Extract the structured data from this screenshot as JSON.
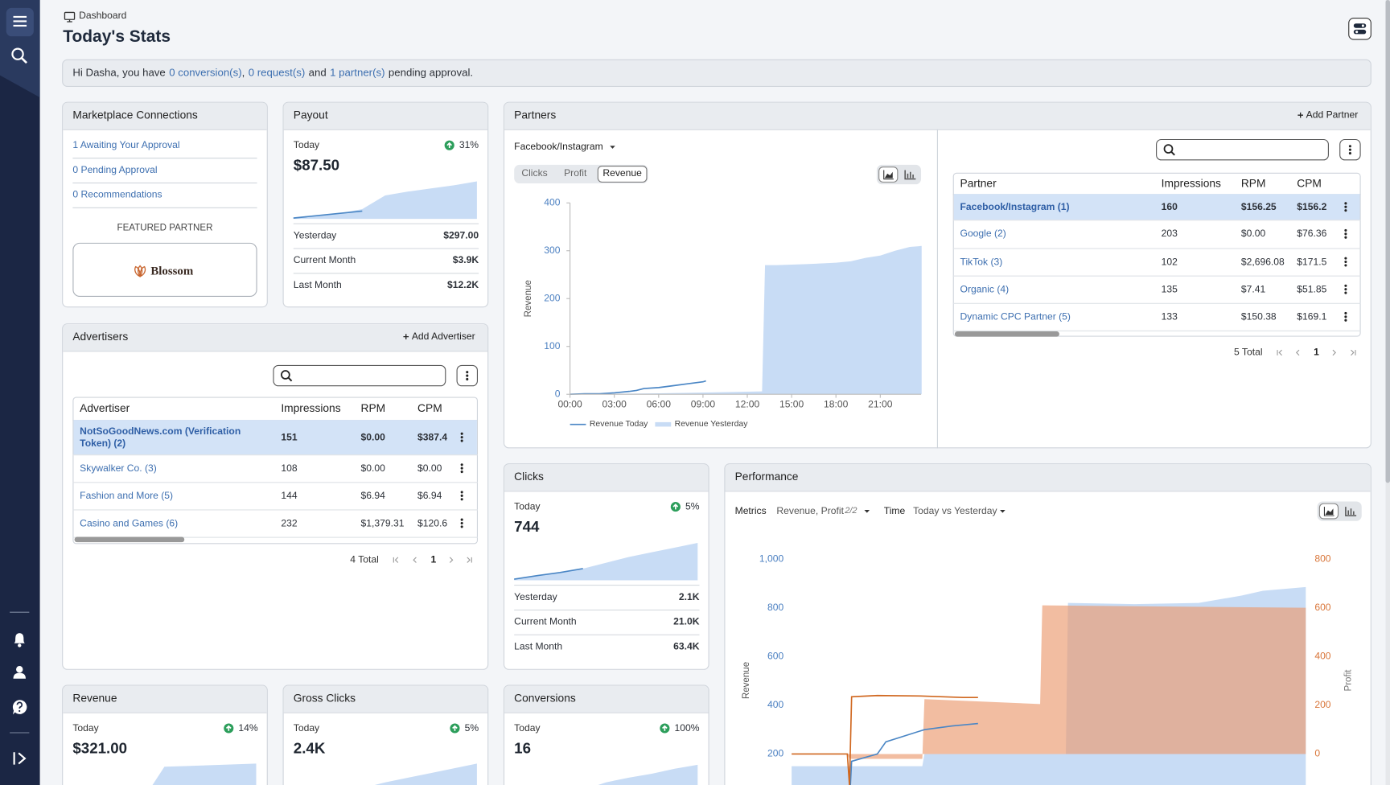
{
  "header": {
    "breadcrumb": "Dashboard",
    "title": "Today's Stats"
  },
  "notice": [
    "Hi Dasha, you have",
    "0 conversion(s)",
    ",",
    "0 request(s)",
    "and",
    "1 partner(s)",
    "pending approval."
  ],
  "marketplace": {
    "title": "Marketplace Connections",
    "links": [
      "1 Awaiting Your Approval",
      "0 Pending Approval",
      "0 Recommendations"
    ],
    "featured_label": "FEATURED PARTNER",
    "featured_name": "Blossom"
  },
  "payout": {
    "title": "Payout",
    "today_label": "Today",
    "change": "31%",
    "value": "$87.50",
    "rows": [
      {
        "label": "Yesterday",
        "value": "$297.00"
      },
      {
        "label": "Current Month",
        "value": "$3.9K"
      },
      {
        "label": "Last Month",
        "value": "$12.2K"
      }
    ],
    "chart_data": {
      "type": "sparkline",
      "xlim": [
        0,
        24
      ],
      "ylim": [
        0,
        100
      ],
      "x": [
        0,
        3,
        6,
        9,
        12,
        15,
        18,
        21,
        24
      ],
      "series": [
        {
          "type": "area",
          "color": "#c8dcf5",
          "values": [
            2,
            8,
            14,
            25,
            60,
            70,
            78,
            86,
            96
          ]
        },
        {
          "type": "line",
          "color": "#4a86c5",
          "values": [
            2,
            8,
            14,
            20,
            null,
            null,
            null,
            null,
            null
          ]
        }
      ]
    }
  },
  "clicks": {
    "title": "Clicks",
    "today_label": "Today",
    "change": "5%",
    "value": "744",
    "rows": [
      {
        "label": "Yesterday",
        "value": "2.1K"
      },
      {
        "label": "Current Month",
        "value": "21.0K"
      },
      {
        "label": "Last Month",
        "value": "63.4K"
      }
    ],
    "chart_data": {
      "type": "sparkline",
      "xlim": [
        0,
        24
      ],
      "ylim": [
        0,
        100
      ],
      "x": [
        0,
        3,
        6,
        9,
        12,
        15,
        18,
        21,
        24
      ],
      "series": [
        {
          "type": "area",
          "color": "#c8dcf5",
          "values": [
            3,
            12,
            20,
            30,
            45,
            60,
            72,
            84,
            96
          ]
        },
        {
          "type": "line",
          "color": "#4a86c5",
          "values": [
            3,
            12,
            20,
            30,
            null,
            null,
            null,
            null,
            null
          ]
        }
      ]
    }
  },
  "revenue": {
    "title": "Revenue",
    "today_label": "Today",
    "change": "14%",
    "value": "$321.00",
    "chart_data": {
      "type": "sparkline",
      "xlim": [
        0,
        24
      ],
      "ylim": [
        0,
        100
      ],
      "x": [
        0,
        3,
        6,
        9,
        12,
        15,
        18,
        21,
        24
      ],
      "series": [
        {
          "type": "area",
          "color": "#c8dcf5",
          "values": [
            0,
            0,
            0,
            0,
            90,
            92,
            94,
            96,
            98
          ]
        },
        {
          "type": "line",
          "color": "#4a86c5",
          "values": [
            0,
            0,
            0,
            0,
            null,
            null,
            null,
            null,
            null
          ]
        }
      ]
    }
  },
  "gross_clicks": {
    "title": "Gross Clicks",
    "today_label": "Today",
    "change": "5%",
    "value": "2.4K",
    "chart_data": {
      "type": "sparkline",
      "xlim": [
        0,
        24
      ],
      "ylim": [
        0,
        100
      ],
      "x": [
        0,
        3,
        6,
        9,
        12,
        15,
        18,
        21,
        24
      ],
      "series": [
        {
          "type": "area",
          "color": "#c8dcf5",
          "values": [
            0,
            10,
            22,
            35,
            50,
            62,
            74,
            86,
            98
          ]
        },
        {
          "type": "line",
          "color": "#4a86c5",
          "values": [
            0,
            10,
            22,
            35,
            null,
            null,
            null,
            null,
            null
          ]
        }
      ]
    }
  },
  "conversions": {
    "title": "Conversions",
    "today_label": "Today",
    "change": "100%",
    "value": "16",
    "chart_data": {
      "type": "sparkline",
      "xlim": [
        0,
        24
      ],
      "ylim": [
        0,
        100
      ],
      "x": [
        0,
        3,
        6,
        9,
        12,
        15,
        18,
        21,
        24
      ],
      "series": [
        {
          "type": "area",
          "color": "#c8dcf5",
          "values": [
            0,
            5,
            15,
            30,
            50,
            62,
            72,
            85,
            95
          ]
        },
        {
          "type": "line",
          "color": "#4a86c5",
          "values": [
            0,
            5,
            15,
            30,
            null,
            null,
            null,
            null,
            null
          ]
        }
      ]
    }
  },
  "advertisers": {
    "title": "Advertisers",
    "add": "Add Advertiser",
    "columns": [
      "Advertiser",
      "Impressions",
      "RPM",
      "CPM"
    ],
    "selected_row": 0,
    "rows": [
      [
        "NotSoGoodNews.com (Verification Token) (2)",
        "151",
        "$0.00",
        "$387.4"
      ],
      [
        "Skywalker Co. (3)",
        "108",
        "$0.00",
        "$0.00"
      ],
      [
        "Fashion and More (5)",
        "144",
        "$6.94",
        "$6.94"
      ],
      [
        "Casino and Games (6)",
        "232",
        "$1,379.31",
        "$120.6"
      ]
    ],
    "total": "4 Total",
    "page": "1"
  },
  "partners": {
    "title": "Partners",
    "add": "Add Partner",
    "source": "Facebook/Instagram",
    "tabs": [
      "Clicks",
      "Profit",
      "Revenue"
    ],
    "active_tab": 2,
    "chart_data": {
      "type": "area",
      "y_label": "Revenue",
      "xlim": [
        0,
        24
      ],
      "xticks": [
        {
          "value": 0,
          "label": "00:00"
        },
        {
          "value": 3,
          "label": "03:00"
        },
        {
          "value": 6,
          "label": "06:00"
        },
        {
          "value": 9,
          "label": "09:00"
        },
        {
          "value": 12,
          "label": "12:00"
        },
        {
          "value": 15,
          "label": "15:00"
        },
        {
          "value": 18,
          "label": "18:00"
        },
        {
          "value": 21,
          "label": "21:00"
        }
      ],
      "ylim": [
        0,
        400
      ],
      "yticks": [
        0,
        100,
        200,
        300,
        400
      ],
      "series": [
        {
          "name": "Revenue Today",
          "type": "line",
          "color": "#4a86c5",
          "x": [
            0,
            1,
            2,
            3,
            4,
            4.5,
            5,
            6,
            7,
            8,
            9,
            9.2
          ],
          "values": [
            0,
            1,
            1,
            3,
            6,
            8,
            12,
            14,
            18,
            22,
            26,
            28
          ]
        },
        {
          "name": "Revenue Yesterday",
          "type": "area",
          "color": "#c8dcf5",
          "x": [
            0,
            6,
            13,
            13.2,
            14,
            16,
            18,
            19,
            20,
            21,
            22,
            23,
            23.8
          ],
          "values": [
            0,
            2,
            6,
            270,
            270,
            272,
            275,
            278,
            285,
            290,
            300,
            308,
            310
          ]
        }
      ]
    },
    "columns": [
      "Partner",
      "Impressions",
      "RPM",
      "CPM"
    ],
    "selected_row": 0,
    "rows": [
      [
        "Facebook/Instagram (1)",
        "160",
        "$156.25",
        "$156.2"
      ],
      [
        "Google (2)",
        "203",
        "$0.00",
        "$76.36"
      ],
      [
        "TikTok (3)",
        "102",
        "$2,696.08",
        "$171.5"
      ],
      [
        "Organic (4)",
        "135",
        "$7.41",
        "$51.85"
      ],
      [
        "Dynamic CPC Partner (5)",
        "133",
        "$150.38",
        "$169.1"
      ]
    ],
    "total": "5 Total",
    "page": "1"
  },
  "performance": {
    "title": "Performance",
    "metrics_label": "Metrics",
    "metrics_value": "Revenue, Profit",
    "metrics_count": "2/2",
    "time_label": "Time",
    "time_value": "Today vs Yesterday",
    "chart_data": {
      "type": "area",
      "y_label": "Revenue",
      "y2_label": "Profit",
      "xlim": [
        0,
        24
      ],
      "ylim": [
        0,
        1000
      ],
      "yticks": [
        200,
        400,
        600,
        800,
        {
          "value": 1000,
          "label": "1,000"
        }
      ],
      "y2lim": [
        -200,
        800
      ],
      "y2ticks": [
        0,
        200,
        400,
        600,
        800
      ],
      "series": [
        {
          "type": "area",
          "color": "#c8dcf5",
          "x": [
            0,
            6.1,
            6.2,
            12.8,
            12.9,
            16,
            19,
            21,
            22,
            24
          ],
          "values": [
            150,
            150,
            200,
            200,
            820,
            815,
            820,
            850,
            870,
            885
          ]
        },
        {
          "type": "area",
          "axis": "y2",
          "color": "#eb9a6ea6",
          "x": [
            0,
            2.6,
            2.7,
            6.1,
            6.2,
            11.6,
            11.7,
            24
          ],
          "values": [
            0,
            0,
            -20,
            -20,
            225,
            205,
            610,
            600
          ]
        },
        {
          "type": "line",
          "color": "#4a86c5",
          "x": [
            2.7,
            2.8,
            4,
            4.4,
            6.2,
            7.5,
            8.7
          ],
          "values": [
            0,
            170,
            200,
            250,
            300,
            315,
            325
          ]
        },
        {
          "type": "line",
          "axis": "y2",
          "color": "#d0671f",
          "x": [
            0,
            2.6,
            2.7,
            2.8,
            4,
            6,
            8,
            8.7
          ],
          "values": [
            0,
            0,
            -130,
            235,
            240,
            238,
            232,
            232
          ]
        }
      ]
    }
  }
}
